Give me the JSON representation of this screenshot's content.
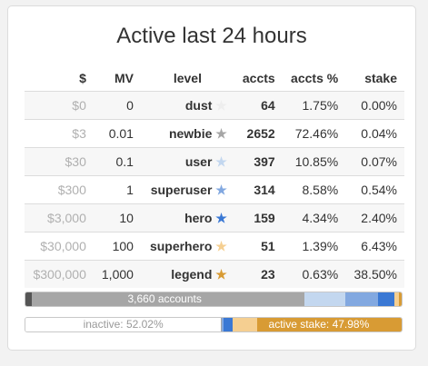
{
  "title": "Active last 24 hours",
  "headers": {
    "dollar": "$",
    "mv": "MV",
    "level": "level",
    "accts": "accts",
    "accts_pct": "accts %",
    "stake": "stake"
  },
  "rows": [
    {
      "dollar": "$0",
      "mv": "0",
      "level": "dust",
      "star_color": "#eeeeee",
      "accts": "64",
      "accts_pct": "1.75%",
      "stake": "0.00%"
    },
    {
      "dollar": "$3",
      "mv": "0.01",
      "level": "newbie",
      "star_color": "#a6a6a6",
      "accts": "2652",
      "accts_pct": "72.46%",
      "stake": "0.04%"
    },
    {
      "dollar": "$30",
      "mv": "0.1",
      "level": "user",
      "star_color": "#c3d7ef",
      "accts": "397",
      "accts_pct": "10.85%",
      "stake": "0.07%"
    },
    {
      "dollar": "$300",
      "mv": "1",
      "level": "superuser",
      "star_color": "#82a8e0",
      "accts": "314",
      "accts_pct": "8.58%",
      "stake": "0.54%"
    },
    {
      "dollar": "$3,000",
      "mv": "10",
      "level": "hero",
      "star_color": "#3a78d4",
      "accts": "159",
      "accts_pct": "4.34%",
      "stake": "2.40%"
    },
    {
      "dollar": "$30,000",
      "mv": "100",
      "level": "superhero",
      "star_color": "#f5cf91",
      "accts": "51",
      "accts_pct": "1.39%",
      "stake": "6.43%"
    },
    {
      "dollar": "$300,000",
      "mv": "1,000",
      "level": "legend",
      "star_color": "#d89b34",
      "accts": "23",
      "accts_pct": "0.63%",
      "stake": "38.50%"
    }
  ],
  "accounts_bar": {
    "label": "3,660 accounts",
    "segments": [
      {
        "level": "dust",
        "pct": 1.75,
        "color": "#555555"
      },
      {
        "level": "newbie",
        "pct": 72.46,
        "color": "#a6a6a6"
      },
      {
        "level": "user",
        "pct": 10.85,
        "color": "#c3d7ef"
      },
      {
        "level": "superuser",
        "pct": 8.58,
        "color": "#82a8e0"
      },
      {
        "level": "hero",
        "pct": 4.34,
        "color": "#3a78d4"
      },
      {
        "level": "superhero",
        "pct": 1.39,
        "color": "#f5cf91"
      },
      {
        "level": "legend",
        "pct": 0.63,
        "color": "#d89b34"
      }
    ]
  },
  "stake_bar": {
    "inactive_label": "inactive: 52.02%",
    "active_label": "active stake: 47.98%",
    "segments": [
      {
        "level": "inactive",
        "pct": 52.02,
        "color": "#ffffff"
      },
      {
        "level": "dust",
        "pct": 0.0,
        "color": "#555555"
      },
      {
        "level": "newbie",
        "pct": 0.04,
        "color": "#a6a6a6"
      },
      {
        "level": "user",
        "pct": 0.07,
        "color": "#c3d7ef"
      },
      {
        "level": "superuser",
        "pct": 0.54,
        "color": "#82a8e0"
      },
      {
        "level": "hero",
        "pct": 2.4,
        "color": "#3a78d4"
      },
      {
        "level": "superhero",
        "pct": 6.43,
        "color": "#f5cf91"
      },
      {
        "level": "legend",
        "pct": 38.5,
        "color": "#d89b34"
      }
    ]
  }
}
